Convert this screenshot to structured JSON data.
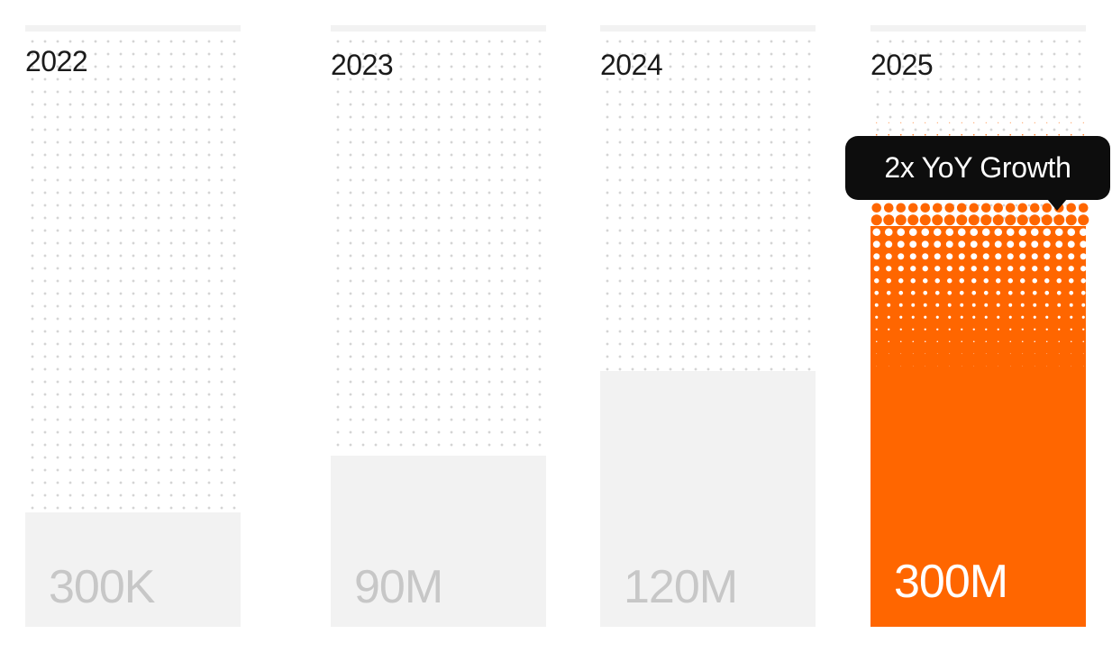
{
  "chart_data": {
    "type": "bar",
    "categories": [
      "2022",
      "2023",
      "2024",
      "2025"
    ],
    "value_labels": [
      "300K",
      "90M",
      "120M",
      "300M"
    ],
    "bar_level": [
      0.19,
      0.285,
      0.425,
      0.83
    ],
    "highlight_index": 3,
    "annotation": {
      "text": "2x YoY Growth"
    },
    "grid": true,
    "colors": {
      "bar": "#f2f2f2",
      "highlight": "#ff6600",
      "dot": "#d4d4d4",
      "year_text": "#1a1a1a",
      "value_text": "#c7c7c7",
      "highlight_value_text": "#ffffff",
      "tooltip_bg": "#0d0d0d"
    }
  }
}
